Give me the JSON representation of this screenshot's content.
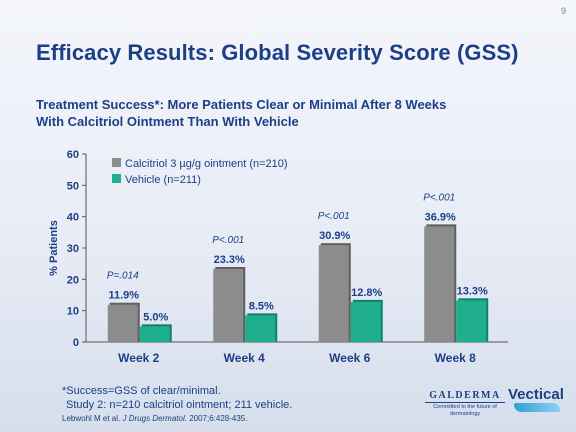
{
  "slide": {
    "page_number": "9",
    "title": "Efficacy Results: Global Severity Score (GSS)",
    "subtitle_line1": "Treatment Success*: More Patients Clear or Minimal After 8 Weeks",
    "subtitle_line2": "With Calcitriol Ointment Than With Vehicle",
    "footnote_line1": "*Success=GSS of clear/minimal.",
    "footnote_line2": "Study 2: n=210 calcitriol ointment; 211 vehicle.",
    "citation_authors": "Lebwohl M et al.",
    "citation_journal": "J Drugs Dermatol.",
    "citation_rest": "2007;6:428-435.",
    "logo_galderma": "GALDERMA",
    "logo_galderma_tagline": "Committed to the future of dermatology",
    "logo_vectical": "Vectical"
  },
  "colors": {
    "title": "#1d3f86",
    "calcitriol_bar": "#8c8c8c",
    "vehicle_bar": "#1fae8e"
  },
  "chart_data": {
    "type": "bar",
    "categories": [
      "Week 2",
      "Week 4",
      "Week 6",
      "Week 8"
    ],
    "series": [
      {
        "name": "Calcitriol 3 µg/g ointment (n=210)",
        "values": [
          11.9,
          23.3,
          30.9,
          36.9
        ],
        "labels": [
          "11.9%",
          "23.3%",
          "30.9%",
          "36.9%"
        ]
      },
      {
        "name": "Vehicle (n=211)",
        "values": [
          5.0,
          8.5,
          12.8,
          13.3
        ],
        "labels": [
          "5.0%",
          "8.5%",
          "12.8%",
          "13.3%"
        ]
      }
    ],
    "p_values": [
      "P=.014",
      "P<.001",
      "P<.001",
      "P<.001"
    ],
    "ylabel": "% Patients",
    "ylim": [
      0,
      60
    ],
    "yticks": [
      0,
      10,
      20,
      30,
      40,
      50,
      60
    ],
    "legend_position": "top-left"
  }
}
